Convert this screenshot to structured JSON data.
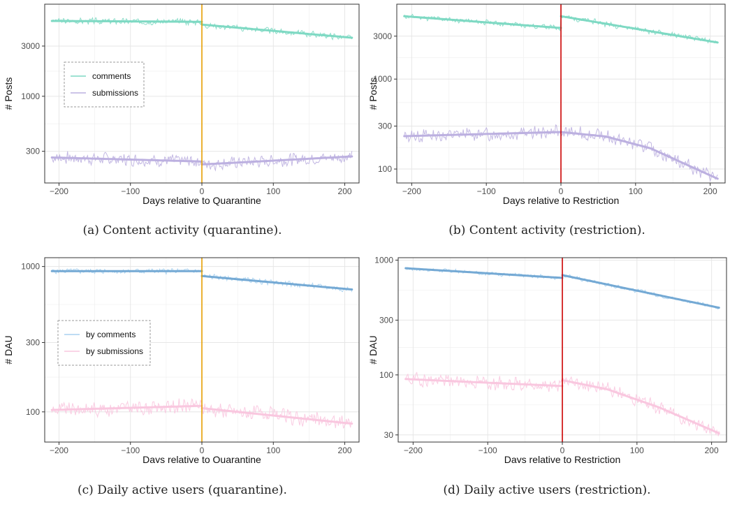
{
  "chart_data": [
    {
      "type": "line",
      "caption": "(a) Content activity (quarantine).",
      "xlabel": "Days relative to Quarantine",
      "ylabel": "# Posts",
      "xlim": [
        -220,
        220
      ],
      "ylim": [
        150,
        7500
      ],
      "yscale": "log",
      "xticks": [
        -200,
        -100,
        0,
        100,
        200
      ],
      "xtick_labels": [
        "−200",
        "−100",
        "0",
        "100",
        "200"
      ],
      "yticks": [
        300,
        1000,
        3000
      ],
      "ytick_labels": [
        "300",
        "1000",
        "3000"
      ],
      "event_x": 0,
      "event_color": "#e69f00",
      "legend_position": "upper-left",
      "series": [
        {
          "name": "comments",
          "color": "#7ed9c3",
          "noise": 0.08,
          "seed": 3,
          "trend": [
            [
              -210,
              5200
            ],
            [
              0,
              5100
            ]
          ],
          "trend2": [
            [
              0,
              4800
            ],
            [
              210,
              3600
            ]
          ]
        },
        {
          "name": "submissions",
          "color": "#bcb0e0",
          "noise": 0.16,
          "seed": 7,
          "trend": [
            [
              -210,
              262
            ],
            [
              0,
              240
            ]
          ],
          "trend2": [
            [
              0,
              225
            ],
            [
              210,
              268
            ]
          ]
        }
      ]
    },
    {
      "type": "line",
      "caption": "(b) Content activity (restriction).",
      "xlabel": "Days relative to Restriction",
      "ylabel": "# Posts",
      "xlim": [
        -220,
        220
      ],
      "ylim": [
        70,
        6800
      ],
      "yscale": "log",
      "xticks": [
        -200,
        -100,
        0,
        100,
        200
      ],
      "xtick_labels": [
        "−200",
        "−100",
        "0",
        "100",
        "200"
      ],
      "yticks": [
        100,
        300,
        1000,
        3000
      ],
      "ytick_labels": [
        "100",
        "300",
        "1000",
        "3000"
      ],
      "event_x": 0,
      "event_color": "#cc0000",
      "series": [
        {
          "name": "comments",
          "color": "#7ed9c3",
          "noise": 0.08,
          "seed": 11,
          "trend": [
            [
              -210,
              5000
            ],
            [
              0,
              3700
            ]
          ],
          "trend2": [
            [
              0,
              5000
            ],
            [
              210,
              2550
            ]
          ]
        },
        {
          "name": "submissions",
          "color": "#bcb0e0",
          "noise": 0.2,
          "seed": 13,
          "trend": [
            [
              -210,
              232
            ],
            [
              0,
              258
            ]
          ],
          "trend2": [
            [
              0,
              258
            ],
            [
              60,
              230
            ],
            [
              120,
              170
            ],
            [
              210,
              78
            ]
          ]
        }
      ]
    },
    {
      "type": "line",
      "caption": "(c) Daily active users (quarantine).",
      "xlabel": "Days relative to Quarantine",
      "ylabel": "# DAU",
      "xlim": [
        -220,
        220
      ],
      "ylim": [
        62,
        1150
      ],
      "yscale": "log",
      "xticks": [
        -200,
        -100,
        0,
        100,
        200
      ],
      "xtick_labels": [
        "−200",
        "−100",
        "0",
        "100",
        "200"
      ],
      "yticks": [
        100,
        300,
        1000
      ],
      "ytick_labels": [
        "100",
        "300",
        "1000"
      ],
      "event_x": 0,
      "event_color": "#e69f00",
      "legend_position": "middle-left",
      "series": [
        {
          "name": "by comments",
          "color": "#a9d1f0",
          "trend_color": "#74a9d4",
          "noise": 0.05,
          "seed": 5,
          "trend": [
            [
              -210,
              930
            ],
            [
              0,
              930
            ]
          ],
          "trend2": [
            [
              0,
              860
            ],
            [
              210,
              695
            ]
          ]
        },
        {
          "name": "by submissions",
          "color": "#f9c7df",
          "noise": 0.14,
          "seed": 9,
          "trend": [
            [
              -210,
              103
            ],
            [
              0,
              110
            ]
          ],
          "trend2": [
            [
              0,
              106
            ],
            [
              210,
              83
            ]
          ]
        }
      ]
    },
    {
      "type": "line",
      "caption": "(d) Daily active users (restriction).",
      "xlabel": "Days relative to Restriction",
      "ylabel": "# DAU",
      "xlim": [
        -220,
        220
      ],
      "ylim": [
        26,
        1050
      ],
      "yscale": "log",
      "xticks": [
        -200,
        -100,
        0,
        100,
        200
      ],
      "xtick_labels": [
        "−200",
        "−100",
        "0",
        "100",
        "200"
      ],
      "yticks": [
        30,
        100,
        300,
        1000
      ],
      "ytick_labels": [
        "30",
        "100",
        "300",
        "1000"
      ],
      "event_x": 0,
      "event_color": "#cc0000",
      "series": [
        {
          "name": "by comments",
          "color": "#a9d1f0",
          "trend_color": "#74a9d4",
          "noise": 0.05,
          "seed": 17,
          "trend": [
            [
              -210,
              850
            ],
            [
              0,
              700
            ]
          ],
          "trend2": [
            [
              0,
              740
            ],
            [
              210,
              385
            ]
          ]
        },
        {
          "name": "by submissions",
          "color": "#f9c7df",
          "noise": 0.16,
          "seed": 19,
          "trend": [
            [
              -210,
              92
            ],
            [
              0,
              80
            ]
          ],
          "trend2": [
            [
              0,
              90
            ],
            [
              60,
              75
            ],
            [
              130,
              52
            ],
            [
              210,
              31
            ]
          ]
        }
      ]
    }
  ]
}
